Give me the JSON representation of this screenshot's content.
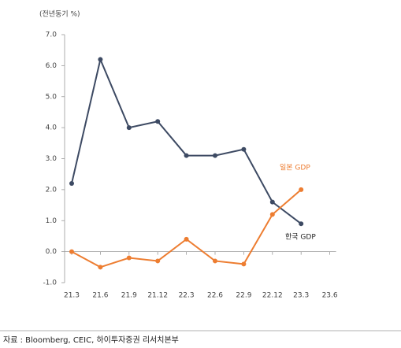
{
  "chart_data": {
    "type": "line",
    "y_axis_label": "(전년동기 %)",
    "categories": [
      "21.3",
      "21.6",
      "21.9",
      "21.12",
      "22.3",
      "22.6",
      "22.9",
      "22.12",
      "23.3",
      "23.6"
    ],
    "series": [
      {
        "name": "한국 GDP",
        "color": "#3d4a63",
        "values": [
          2.2,
          6.2,
          4.0,
          4.2,
          3.1,
          3.1,
          3.3,
          1.6,
          0.9,
          null
        ]
      },
      {
        "name": "일본 GDP",
        "color": "#ed7d31",
        "values": [
          0.0,
          -0.5,
          -0.2,
          -0.3,
          0.4,
          -0.3,
          -0.4,
          1.2,
          2.0,
          null
        ]
      }
    ],
    "ylim": [
      -1,
      7
    ],
    "yticks": [
      {
        "value": -1,
        "label": "-1.0"
      },
      {
        "value": 0,
        "label": "0.0"
      },
      {
        "value": 1,
        "label": "1.0"
      },
      {
        "value": 2,
        "label": "2.0"
      },
      {
        "value": 3,
        "label": "3.0"
      },
      {
        "value": 4,
        "label": "4.0"
      },
      {
        "value": 5,
        "label": "5.0"
      },
      {
        "value": 6,
        "label": "6.0"
      },
      {
        "value": 7,
        "label": "7.0"
      }
    ],
    "grid": false,
    "source": "자료 : Bloomberg, CEIC, 하이투자증권 리서치본부"
  }
}
